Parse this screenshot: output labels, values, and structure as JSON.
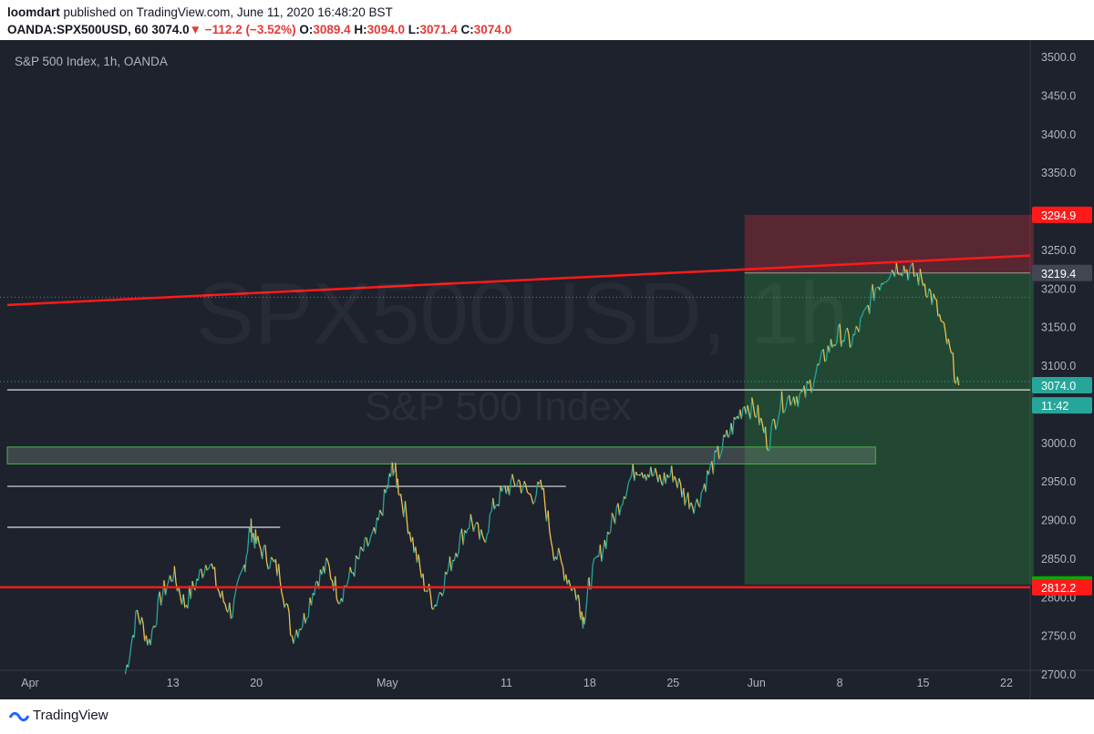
{
  "header": {
    "author": "loomdart",
    "published_text": " published on TradingView.com, June 11, 2020 16:48:20 BST",
    "symbol": "OANDA:SPX500USD, 60",
    "last": "3074.0",
    "change": "−112.2 (−3.52%)",
    "open_label": "O:",
    "open": "3089.4",
    "high_label": "H:",
    "high": "3094.0",
    "low_label": "L:",
    "low": "3071.4",
    "close_label": "C:",
    "close": "3074.0"
  },
  "chart_title": "S&P 500 Index, 1h, OANDA",
  "watermark": {
    "symbol": "SPX500USD, 1h",
    "description": "S&P 500 Index"
  },
  "footer": {
    "brand": "TradingView"
  },
  "colors": {
    "background": "#1e222d",
    "up": "#26a69a",
    "down": "#f0c14b",
    "trendline": "#ff1a1a",
    "stop_zone": "#5a2a30",
    "target_zone": "#1f4a2e",
    "box_zone": "#3c4a44"
  },
  "chart_data": {
    "type": "line",
    "title": "S&P 500 Index, 1h, OANDA",
    "ylim": [
      2670,
      3520
    ],
    "y_ticks": [
      2700,
      2750,
      2800,
      2850,
      2900,
      2950,
      3000,
      3050,
      3100,
      3150,
      3200,
      3250,
      3300,
      3350,
      3400,
      3450,
      3500
    ],
    "x_ticks": [
      {
        "label": "Apr",
        "day": 0
      },
      {
        "label": "13",
        "day": 12
      },
      {
        "label": "20",
        "day": 19
      },
      {
        "label": "May",
        "day": 30
      },
      {
        "label": "11",
        "day": 40
      },
      {
        "label": "18",
        "day": 47
      },
      {
        "label": "25",
        "day": 54
      },
      {
        "label": "Jun",
        "day": 61
      },
      {
        "label": "8",
        "day": 68
      },
      {
        "label": "15",
        "day": 75
      },
      {
        "label": "22",
        "day": 82
      }
    ],
    "series": [
      {
        "values": [
          [
            8,
            2700
          ],
          [
            9,
            2780
          ],
          [
            10,
            2740
          ],
          [
            11,
            2800
          ],
          [
            12,
            2830
          ],
          [
            13,
            2790
          ],
          [
            14,
            2820
          ],
          [
            15,
            2850
          ],
          [
            16,
            2800
          ],
          [
            17,
            2780
          ],
          [
            18,
            2840
          ],
          [
            18.5,
            2890
          ],
          [
            19,
            2870
          ],
          [
            20,
            2850
          ],
          [
            21,
            2830
          ],
          [
            22,
            2750
          ],
          [
            23,
            2770
          ],
          [
            24,
            2820
          ],
          [
            25,
            2840
          ],
          [
            26,
            2800
          ],
          [
            27,
            2830
          ],
          [
            28,
            2860
          ],
          [
            29,
            2880
          ],
          [
            30,
            2940
          ],
          [
            30.5,
            2970
          ],
          [
            31,
            2940
          ],
          [
            32,
            2880
          ],
          [
            33,
            2820
          ],
          [
            34,
            2790
          ],
          [
            35,
            2830
          ],
          [
            36,
            2870
          ],
          [
            37,
            2900
          ],
          [
            38,
            2870
          ],
          [
            39,
            2920
          ],
          [
            40,
            2940
          ],
          [
            41,
            2950
          ],
          [
            42,
            2930
          ],
          [
            43,
            2940
          ],
          [
            44,
            2860
          ],
          [
            45,
            2830
          ],
          [
            46,
            2800
          ],
          [
            46.5,
            2770
          ],
          [
            47,
            2820
          ],
          [
            48,
            2860
          ],
          [
            49,
            2900
          ],
          [
            50,
            2940
          ],
          [
            51,
            2970
          ],
          [
            52,
            2960
          ],
          [
            53,
            2950
          ],
          [
            54,
            2960
          ],
          [
            55,
            2930
          ],
          [
            56,
            2920
          ],
          [
            57,
            2960
          ],
          [
            58,
            2990
          ],
          [
            59,
            3020
          ],
          [
            60,
            3050
          ],
          [
            61,
            3040
          ],
          [
            62,
            3000
          ],
          [
            63,
            3050
          ],
          [
            64,
            3060
          ],
          [
            65,
            3060
          ],
          [
            66,
            3090
          ],
          [
            67,
            3120
          ],
          [
            68,
            3140
          ],
          [
            69,
            3130
          ],
          [
            70,
            3160
          ],
          [
            71,
            3200
          ],
          [
            72,
            3220
          ],
          [
            73,
            3230
          ],
          [
            74,
            3220
          ],
          [
            75,
            3210
          ],
          [
            76,
            3180
          ],
          [
            77,
            3130
          ],
          [
            78,
            3074
          ]
        ]
      }
    ],
    "annotations": {
      "trendline_resistance": {
        "from": [
          -25,
          3178
        ],
        "to": [
          82,
          3242
        ]
      },
      "support_line": {
        "y": 2812.2
      },
      "horizontal_levels": [
        {
          "y": 2890,
          "from_day": -25,
          "to_day": 21
        },
        {
          "y": 2943,
          "from_day": -25,
          "to_day": 45
        },
        {
          "y": 3068,
          "from_day": -25,
          "to_day": 82
        }
      ],
      "zone_box": {
        "y_low": 2972,
        "y_high": 2994,
        "from_day": -25,
        "to_day": 71
      },
      "position": {
        "entry": 3219.4,
        "stop": 3294.9,
        "target": 2815.9,
        "from_day": 60,
        "to_day": 82
      }
    },
    "price_labels": [
      {
        "value": "3294.9",
        "y": 3294.9,
        "color": "#ff1a1a"
      },
      {
        "value": "3219.4",
        "y": 3219.4,
        "color": "#434651"
      },
      {
        "value": "3074.0",
        "y": 3074.0,
        "color": "#26a69a"
      },
      {
        "value": "11:42",
        "y": 3048,
        "color": "#26a69a"
      },
      {
        "value": "2815.9",
        "y": 2815.9,
        "color": "#00b000"
      },
      {
        "value": "2812.2",
        "y": 2812.2,
        "color": "#ff1a1a"
      }
    ]
  }
}
